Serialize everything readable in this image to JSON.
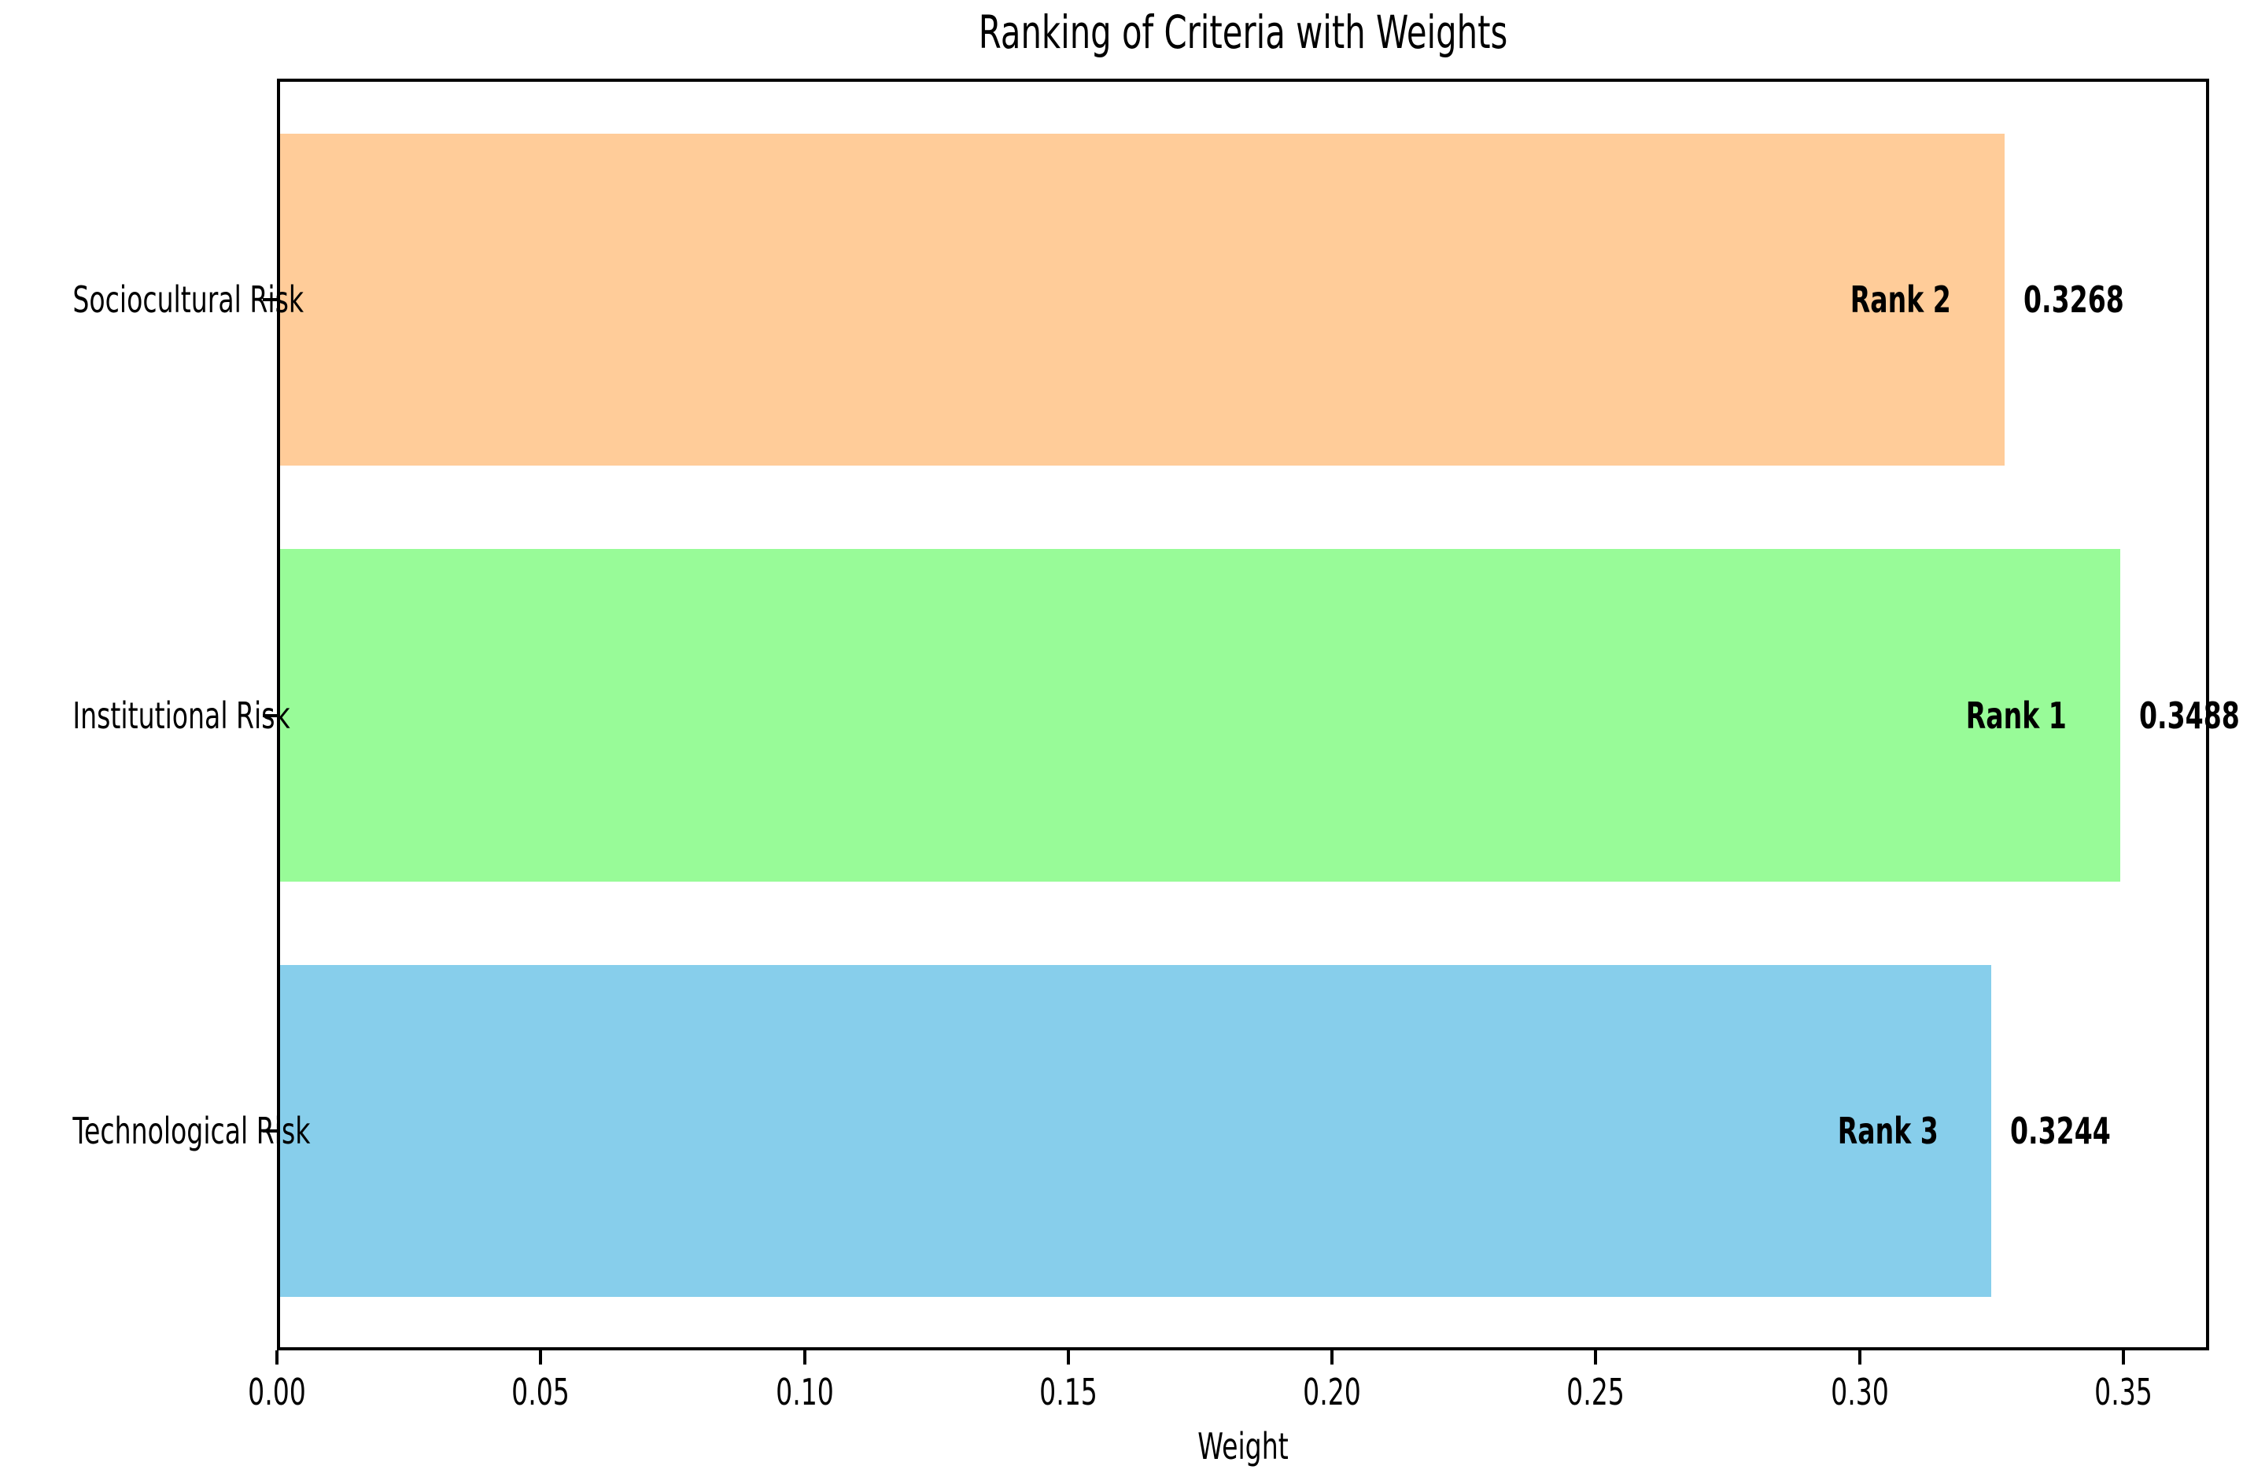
{
  "chart_data": {
    "type": "bar",
    "orientation": "horizontal",
    "title": "Ranking of Criteria with Weights",
    "xlabel": "Weight",
    "ylabel": "",
    "categories": [
      "Sociocultural Risk",
      "Institutional Risk",
      "Technological Risk"
    ],
    "values": [
      0.3268,
      0.3488,
      0.3244
    ],
    "value_labels": [
      "0.3268",
      "0.3488",
      "0.3244"
    ],
    "rank_labels": [
      "Rank 2",
      "Rank 1",
      "Rank 3"
    ],
    "bar_colors": [
      "#ffcc99",
      "#98fb98",
      "#87ceeb"
    ],
    "xlim": [
      0.0,
      0.36624
    ],
    "x_tick_values": [
      0.0,
      0.05,
      0.1,
      0.15,
      0.2,
      0.25,
      0.3,
      0.35
    ],
    "x_tick_labels": [
      "0.00",
      "0.05",
      "0.10",
      "0.15",
      "0.20",
      "0.25",
      "0.30",
      "0.35"
    ],
    "grid": false,
    "legend": false,
    "spine_color": "#000000",
    "text_color": "#000000"
  }
}
